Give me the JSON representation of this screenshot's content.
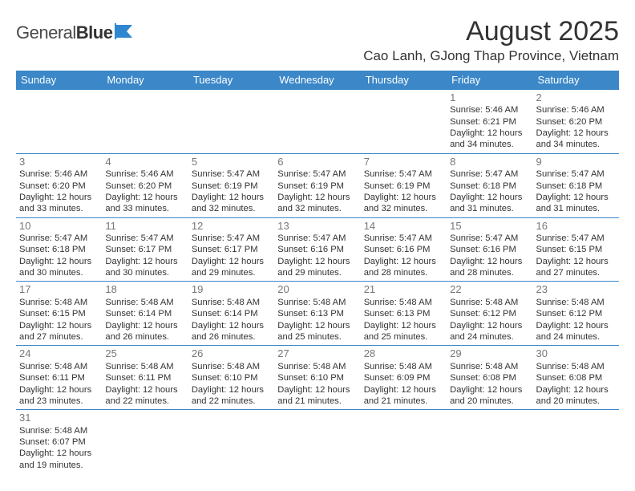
{
  "logo": {
    "part1": "General",
    "part2": "Blue"
  },
  "header": {
    "month": "August 2025",
    "location": "Cao Lanh, GJong Thap Province, Vietnam"
  },
  "colors": {
    "header_bg": "#3b87c8",
    "header_text": "#ffffff",
    "rule": "#3b87c8",
    "daynum": "#777777",
    "body_text": "#333333",
    "logo_blue": "#2f87d0"
  },
  "daynames": [
    "Sunday",
    "Monday",
    "Tuesday",
    "Wednesday",
    "Thursday",
    "Friday",
    "Saturday"
  ],
  "first_weekday": 5,
  "days": [
    {
      "n": 1,
      "sr": "5:46 AM",
      "ss": "6:21 PM",
      "dl": "12 hours and 34 minutes."
    },
    {
      "n": 2,
      "sr": "5:46 AM",
      "ss": "6:20 PM",
      "dl": "12 hours and 34 minutes."
    },
    {
      "n": 3,
      "sr": "5:46 AM",
      "ss": "6:20 PM",
      "dl": "12 hours and 33 minutes."
    },
    {
      "n": 4,
      "sr": "5:46 AM",
      "ss": "6:20 PM",
      "dl": "12 hours and 33 minutes."
    },
    {
      "n": 5,
      "sr": "5:47 AM",
      "ss": "6:19 PM",
      "dl": "12 hours and 32 minutes."
    },
    {
      "n": 6,
      "sr": "5:47 AM",
      "ss": "6:19 PM",
      "dl": "12 hours and 32 minutes."
    },
    {
      "n": 7,
      "sr": "5:47 AM",
      "ss": "6:19 PM",
      "dl": "12 hours and 32 minutes."
    },
    {
      "n": 8,
      "sr": "5:47 AM",
      "ss": "6:18 PM",
      "dl": "12 hours and 31 minutes."
    },
    {
      "n": 9,
      "sr": "5:47 AM",
      "ss": "6:18 PM",
      "dl": "12 hours and 31 minutes."
    },
    {
      "n": 10,
      "sr": "5:47 AM",
      "ss": "6:18 PM",
      "dl": "12 hours and 30 minutes."
    },
    {
      "n": 11,
      "sr": "5:47 AM",
      "ss": "6:17 PM",
      "dl": "12 hours and 30 minutes."
    },
    {
      "n": 12,
      "sr": "5:47 AM",
      "ss": "6:17 PM",
      "dl": "12 hours and 29 minutes."
    },
    {
      "n": 13,
      "sr": "5:47 AM",
      "ss": "6:16 PM",
      "dl": "12 hours and 29 minutes."
    },
    {
      "n": 14,
      "sr": "5:47 AM",
      "ss": "6:16 PM",
      "dl": "12 hours and 28 minutes."
    },
    {
      "n": 15,
      "sr": "5:47 AM",
      "ss": "6:16 PM",
      "dl": "12 hours and 28 minutes."
    },
    {
      "n": 16,
      "sr": "5:47 AM",
      "ss": "6:15 PM",
      "dl": "12 hours and 27 minutes."
    },
    {
      "n": 17,
      "sr": "5:48 AM",
      "ss": "6:15 PM",
      "dl": "12 hours and 27 minutes."
    },
    {
      "n": 18,
      "sr": "5:48 AM",
      "ss": "6:14 PM",
      "dl": "12 hours and 26 minutes."
    },
    {
      "n": 19,
      "sr": "5:48 AM",
      "ss": "6:14 PM",
      "dl": "12 hours and 26 minutes."
    },
    {
      "n": 20,
      "sr": "5:48 AM",
      "ss": "6:13 PM",
      "dl": "12 hours and 25 minutes."
    },
    {
      "n": 21,
      "sr": "5:48 AM",
      "ss": "6:13 PM",
      "dl": "12 hours and 25 minutes."
    },
    {
      "n": 22,
      "sr": "5:48 AM",
      "ss": "6:12 PM",
      "dl": "12 hours and 24 minutes."
    },
    {
      "n": 23,
      "sr": "5:48 AM",
      "ss": "6:12 PM",
      "dl": "12 hours and 24 minutes."
    },
    {
      "n": 24,
      "sr": "5:48 AM",
      "ss": "6:11 PM",
      "dl": "12 hours and 23 minutes."
    },
    {
      "n": 25,
      "sr": "5:48 AM",
      "ss": "6:11 PM",
      "dl": "12 hours and 22 minutes."
    },
    {
      "n": 26,
      "sr": "5:48 AM",
      "ss": "6:10 PM",
      "dl": "12 hours and 22 minutes."
    },
    {
      "n": 27,
      "sr": "5:48 AM",
      "ss": "6:10 PM",
      "dl": "12 hours and 21 minutes."
    },
    {
      "n": 28,
      "sr": "5:48 AM",
      "ss": "6:09 PM",
      "dl": "12 hours and 21 minutes."
    },
    {
      "n": 29,
      "sr": "5:48 AM",
      "ss": "6:08 PM",
      "dl": "12 hours and 20 minutes."
    },
    {
      "n": 30,
      "sr": "5:48 AM",
      "ss": "6:08 PM",
      "dl": "12 hours and 20 minutes."
    },
    {
      "n": 31,
      "sr": "5:48 AM",
      "ss": "6:07 PM",
      "dl": "12 hours and 19 minutes."
    }
  ],
  "labels": {
    "sunrise": "Sunrise:",
    "sunset": "Sunset:",
    "daylight": "Daylight:"
  }
}
